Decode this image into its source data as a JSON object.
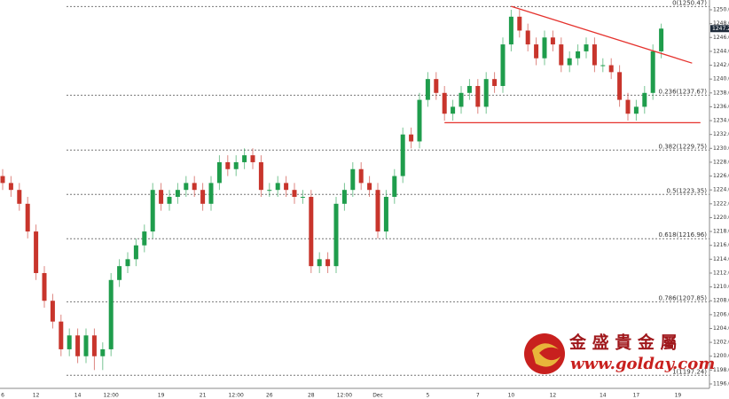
{
  "chart_data": {
    "type": "candlestick",
    "categories": [
      "6",
      null,
      null,
      null,
      "12",
      null,
      null,
      null,
      null,
      "14",
      null,
      null,
      null,
      "12:00",
      null,
      null,
      null,
      null,
      null,
      "19",
      null,
      null,
      null,
      null,
      "21",
      null,
      null,
      null,
      "12:00",
      null,
      null,
      null,
      "26",
      null,
      null,
      null,
      null,
      "28",
      null,
      null,
      null,
      "12:00",
      null,
      null,
      null,
      "Dec",
      null,
      null,
      null,
      null,
      null,
      "5",
      null,
      null,
      null,
      null,
      null,
      "7",
      null,
      null,
      null,
      "10",
      null,
      null,
      null,
      null,
      "12",
      null,
      null,
      null,
      null,
      null,
      "14",
      null,
      null,
      null,
      "17",
      null,
      null,
      null,
      null,
      "19"
    ],
    "open": [
      1226,
      1225,
      1224,
      1222,
      1218,
      1212,
      1208,
      1205,
      1201,
      1203,
      1200,
      1203,
      1200,
      1201,
      1211,
      1213,
      1214,
      1216,
      1218,
      1224,
      1222,
      1223,
      1224,
      1225,
      1224,
      1222,
      1225,
      1228,
      1227,
      1228,
      1229,
      1228,
      1224,
      1224,
      1225,
      1224,
      1223,
      1223,
      1213,
      1214,
      1213,
      1222,
      1224,
      1227,
      1225,
      1224,
      1218,
      1223,
      1226,
      1232,
      1231,
      1237,
      1240,
      1238,
      1235,
      1236,
      1238,
      1239,
      1236,
      1240,
      1239,
      1245,
      1249,
      1247,
      1245,
      1243,
      1246,
      1245,
      1242,
      1243,
      1244,
      1245,
      1242,
      1242,
      1241,
      1237,
      1235,
      1236,
      1238,
      1244,
      null,
      null
    ],
    "high": [
      1227,
      1226,
      1225,
      1223,
      1219,
      1213,
      1209,
      1206,
      1204,
      1204,
      1204,
      1204,
      1202,
      1212,
      1214,
      1215,
      1217,
      1219,
      1225,
      1225,
      1224,
      1225,
      1226,
      1226,
      1225,
      1226,
      1229,
      1229,
      1229,
      1230,
      1230,
      1229,
      1225,
      1226,
      1226,
      1225,
      1224,
      1224,
      1215,
      1215,
      1223,
      1225,
      1228,
      1228,
      1226,
      1225,
      1224,
      1227,
      1233,
      1233,
      1238,
      1241,
      1241,
      1239,
      1237,
      1239,
      1240,
      1240,
      1241,
      1241,
      1246,
      1250,
      1250,
      1248,
      1246,
      1247,
      1247,
      1246,
      1244,
      1245,
      1246,
      1246,
      1243,
      1243,
      1242,
      1238,
      1237,
      1239,
      1245,
      1248,
      null,
      null
    ],
    "low": [
      1224,
      1223,
      1221,
      1217,
      1211,
      1207,
      1204,
      1200,
      1200,
      1199,
      1199,
      1198,
      1198,
      1200,
      1210,
      1212,
      1213,
      1215,
      1217,
      1221,
      1221,
      1222,
      1223,
      1223,
      1221,
      1221,
      1224,
      1226,
      1226,
      1227,
      1227,
      1223,
      1223,
      1223,
      1223,
      1222,
      1222,
      1212,
      1212,
      1212,
      1212,
      1221,
      1223,
      1224,
      1223,
      1217,
      1217,
      1222,
      1225,
      1230,
      1230,
      1236,
      1237,
      1234,
      1234,
      1235,
      1237,
      1235,
      1235,
      1238,
      1238,
      1244,
      1246,
      1244,
      1242,
      1242,
      1244,
      1241,
      1241,
      1242,
      1243,
      1241,
      1241,
      1240,
      1236,
      1234,
      1234,
      1235,
      1237,
      1243,
      null,
      null
    ],
    "close": [
      1225,
      1224,
      1222,
      1218,
      1212,
      1208,
      1205,
      1201,
      1203,
      1200,
      1203,
      1200,
      1201,
      1211,
      1213,
      1214,
      1216,
      1218,
      1224,
      1222,
      1223,
      1224,
      1225,
      1224,
      1222,
      1225,
      1228,
      1227,
      1228,
      1229,
      1228,
      1224,
      1224,
      1225,
      1224,
      1223,
      1223,
      1213,
      1214,
      1213,
      1222,
      1224,
      1227,
      1225,
      1224,
      1218,
      1223,
      1226,
      1232,
      1231,
      1237,
      1240,
      1238,
      1235,
      1236,
      1238,
      1239,
      1236,
      1240,
      1239,
      1245,
      1249,
      1247,
      1245,
      1243,
      1246,
      1245,
      1242,
      1243,
      1244,
      1245,
      1242,
      1242,
      1241,
      1237,
      1235,
      1236,
      1238,
      1244,
      1247.28,
      null,
      null
    ],
    "up_color": "#1f9d4c",
    "down_color": "#c8352c",
    "ylim": [
      1195.36,
      1251.41
    ],
    "yticks": [
      {
        "value": 1196,
        "label": "1196.00"
      },
      {
        "value": 1198,
        "label": "1198.00"
      },
      {
        "value": 1200,
        "label": "1200.00"
      },
      {
        "value": 1202,
        "label": "1202.00"
      },
      {
        "value": 1204,
        "label": "1204.00"
      },
      {
        "value": 1206,
        "label": "1206.00"
      },
      {
        "value": 1208,
        "label": "1208.00"
      },
      {
        "value": 1210,
        "label": "1210.00"
      },
      {
        "value": 1212,
        "label": "1212.00"
      },
      {
        "value": 1214,
        "label": "1214.00"
      },
      {
        "value": 1216,
        "label": "1216.00"
      },
      {
        "value": 1218,
        "label": "1218.00"
      },
      {
        "value": 1220,
        "label": "1220.00"
      },
      {
        "value": 1222,
        "label": "1222.00"
      },
      {
        "value": 1224,
        "label": "1224.00"
      },
      {
        "value": 1226,
        "label": "1226.00"
      },
      {
        "value": 1228,
        "label": "1228.00"
      },
      {
        "value": 1230,
        "label": "1230.00"
      },
      {
        "value": 1232,
        "label": "1232.00"
      },
      {
        "value": 1234,
        "label": "1234.00"
      },
      {
        "value": 1236,
        "label": "1236.00"
      },
      {
        "value": 1238,
        "label": "1238.00"
      },
      {
        "value": 1240,
        "label": "1240.00"
      },
      {
        "value": 1242,
        "label": "1242.00"
      },
      {
        "value": 1244,
        "label": "1244.00"
      },
      {
        "value": 1246,
        "label": "1246.00"
      },
      {
        "value": 1248,
        "label": "1248.00"
      },
      {
        "value": 1250,
        "label": "1250.00"
      }
    ],
    "fib_levels": [
      {
        "value": 1250.47,
        "label": "0(1250.47)"
      },
      {
        "value": 1237.67,
        "label": "0.236(1237.67)"
      },
      {
        "value": 1229.75,
        "label": "0.382(1229.75)"
      },
      {
        "value": 1223.35,
        "label": "0.5(1223.35)"
      },
      {
        "value": 1216.96,
        "label": "0.618(1216.96)"
      },
      {
        "value": 1207.85,
        "label": "0.786(1207.85)"
      },
      {
        "value": 1197.24,
        "label": "1(1197.24)"
      }
    ],
    "trendlines": [
      {
        "x": [
          61,
          82.7
        ],
        "y": [
          1250.5,
          1242.3
        ],
        "color": "#e5322d"
      },
      {
        "x": [
          53,
          83.7
        ],
        "y": [
          1233.7,
          1233.7
        ],
        "color": "#e5322d"
      }
    ],
    "last_price": {
      "value": 1247.28,
      "label": "1247.28"
    },
    "logo": {
      "name": "金 盛 貴 金 屬",
      "url": "www.golday.com"
    }
  }
}
